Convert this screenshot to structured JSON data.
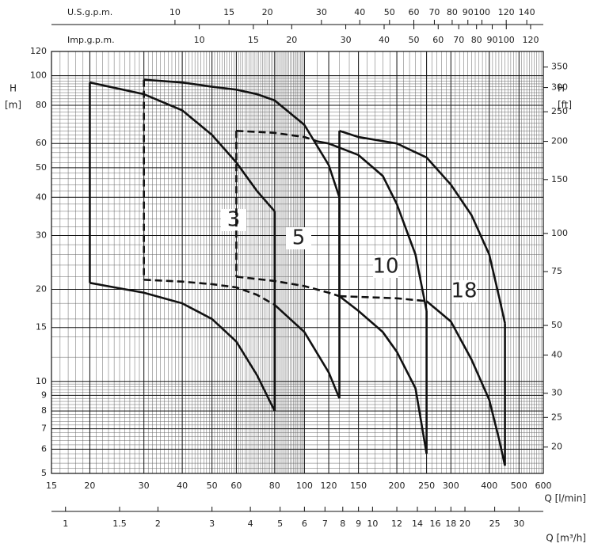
{
  "chart_data": {
    "type": "line",
    "log_x": true,
    "log_y": true,
    "grid": true,
    "xlabel": "Q [l/min]",
    "xlim": [
      15,
      600
    ],
    "xticks": [
      15,
      20,
      30,
      40,
      50,
      60,
      80,
      100,
      120,
      150,
      200,
      250,
      300,
      400,
      500,
      600
    ],
    "ylabel": "H",
    "yunit": "[m]",
    "ylim": [
      5,
      120
    ],
    "yticks": [
      5,
      6,
      7,
      8,
      9,
      10,
      15,
      20,
      30,
      40,
      50,
      60,
      80,
      100,
      120
    ],
    "y2label": "H",
    "y2unit": "[ft]",
    "y2lim": [
      16.4,
      393.7
    ],
    "y2ticks": [
      20,
      25,
      30,
      40,
      50,
      75,
      100,
      150,
      200,
      250,
      300,
      350
    ],
    "us_gpm_axis": {
      "label": "U.S.g.p.m.",
      "xlim": [
        3.96,
        158.5
      ],
      "xticks": [
        10,
        15,
        20,
        30,
        40,
        50,
        60,
        70,
        80,
        90,
        100,
        120,
        140
      ]
    },
    "imp_gpm_axis": {
      "label": "Imp.g.p.m.",
      "xlim": [
        3.3,
        132
      ],
      "xticks": [
        10,
        15,
        20,
        30,
        40,
        50,
        60,
        70,
        80,
        90,
        100,
        120
      ]
    },
    "m3h_axis": {
      "label": "Q [m³/h]",
      "xlim": [
        0.9,
        36
      ],
      "xticks": [
        1,
        1.5,
        2,
        3,
        4,
        5,
        6,
        7,
        8,
        9,
        10,
        12,
        14,
        16,
        18,
        20,
        25,
        30
      ]
    },
    "series": [
      {
        "name": "3",
        "color": "#111111",
        "edge_dashed": false,
        "upper": [
          {
            "x": [
              20,
              30,
              40,
              50,
              60,
              70,
              80
            ],
            "values": [
              95,
              87,
              77,
              64,
              52,
              42,
              36
            ],
            "dashed": false
          }
        ],
        "lower": [
          {
            "x": [
              20,
              30,
              40,
              50,
              60,
              70,
              80
            ],
            "values": [
              21,
              19.5,
              18,
              16,
              13.5,
              10.5,
              8
            ],
            "dashed": false
          }
        ]
      },
      {
        "name": "5",
        "color": "#111111",
        "edge_dashed": true,
        "upper": [
          {
            "x": [
              30,
              40,
              50,
              60,
              70,
              80,
              100,
              120,
              130
            ],
            "values": [
              97,
              95,
              92,
              90,
              87,
              83,
              69,
              51,
              40
            ],
            "dashed": false
          }
        ],
        "lower": [
          {
            "x": [
              30,
              40,
              50,
              60,
              70,
              80
            ],
            "values": [
              21.5,
              21.2,
              20.8,
              20.3,
              19.2,
              17.8
            ],
            "dashed": true
          },
          {
            "x": [
              80,
              100,
              120,
              130
            ],
            "values": [
              17.8,
              14.5,
              10.7,
              8.8
            ],
            "dashed": false
          }
        ]
      },
      {
        "name": "10",
        "color": "#111111",
        "edge_dashed": true,
        "upper": [
          {
            "x": [
              60,
              80,
              100,
              110
            ],
            "values": [
              66,
              65,
              63,
              61
            ],
            "dashed": true
          },
          {
            "x": [
              110,
              120,
              150,
              180,
              200,
              230,
              250
            ],
            "values": [
              61,
              60,
              55,
              47,
              38,
              26,
              17
            ],
            "dashed": false
          }
        ],
        "lower": [
          {
            "x": [
              60,
              80,
              100,
              120,
              130
            ],
            "values": [
              22,
              21.3,
              20.5,
              19.5,
              19
            ],
            "dashed": true
          },
          {
            "x": [
              130,
              150,
              180,
              200,
              230,
              250
            ],
            "values": [
              19,
              17,
              14.5,
              12.5,
              9.5,
              5.8
            ],
            "dashed": false
          }
        ]
      },
      {
        "name": "18",
        "color": "#111111",
        "edge_dashed": false,
        "upper": [
          {
            "x": [
              130,
              150,
              200,
              250,
              300,
              350,
              400,
              430,
              450
            ],
            "values": [
              66,
              63,
              60,
              54,
              44,
              35,
              26,
              19,
              15.5
            ],
            "dashed": false
          }
        ],
        "lower": [
          {
            "x": [
              130,
              200,
              250
            ],
            "values": [
              19,
              18.7,
              18.3
            ],
            "dashed": true
          },
          {
            "x": [
              250,
              300,
              350,
              400,
              430,
              450
            ],
            "values": [
              18.3,
              15.7,
              11.8,
              8.7,
              6.5,
              5.3
            ],
            "dashed": false
          }
        ]
      }
    ]
  }
}
